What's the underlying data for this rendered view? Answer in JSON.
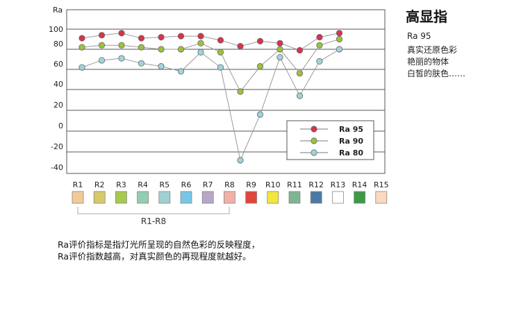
{
  "side": {
    "title": "高显指",
    "subtitle": "Ra 95",
    "lines": [
      "真实还原色彩",
      "艳丽的物体",
      "白皙的肤色……"
    ]
  },
  "description": [
    "Ra评价指标是指灯光所呈现的自然色彩的反映程度，",
    "Ra评价指数越高，对真实颜色的再现程度就越好。"
  ],
  "bracket_label": "R1-R8",
  "chart_data": {
    "type": "line",
    "ylabel": "Ra",
    "yticks": [
      100,
      80,
      60,
      40,
      20,
      0,
      -20,
      -40
    ],
    "categories": [
      "R1",
      "R2",
      "R3",
      "R4",
      "R5",
      "R6",
      "R7",
      "R8",
      "R9",
      "R10",
      "R11",
      "R12",
      "R13",
      "R14",
      "R15"
    ],
    "series": [
      {
        "name": "Ra 95",
        "color": "#d9334b",
        "values": [
          91,
          94,
          96,
          91,
          92,
          93,
          93,
          89,
          83,
          88,
          86,
          79,
          92,
          96,
          89
        ]
      },
      {
        "name": "Ra 90",
        "color": "#9cc23a",
        "values": [
          82,
          84,
          84,
          82,
          80,
          80,
          86,
          77,
          38,
          63,
          80,
          56,
          84,
          90,
          81
        ]
      },
      {
        "name": "Ra 80",
        "color": "#9fd3da",
        "values": [
          62,
          69,
          71,
          66,
          63,
          58,
          77,
          62,
          -28,
          16,
          72,
          34,
          68,
          80,
          66
        ]
      }
    ],
    "swatches": [
      "#f4c89b",
      "#d8c96a",
      "#a8c94f",
      "#93cdb3",
      "#9fd0d2",
      "#78c6e5",
      "#b8a6c9",
      "#f2b0a8",
      "#e0463b",
      "#f2e73d",
      "#7fb493",
      "#4b79a3",
      "#ffffff",
      "#3d9a47",
      "#f9d9c1"
    ],
    "legend_position": "bottom-right"
  }
}
